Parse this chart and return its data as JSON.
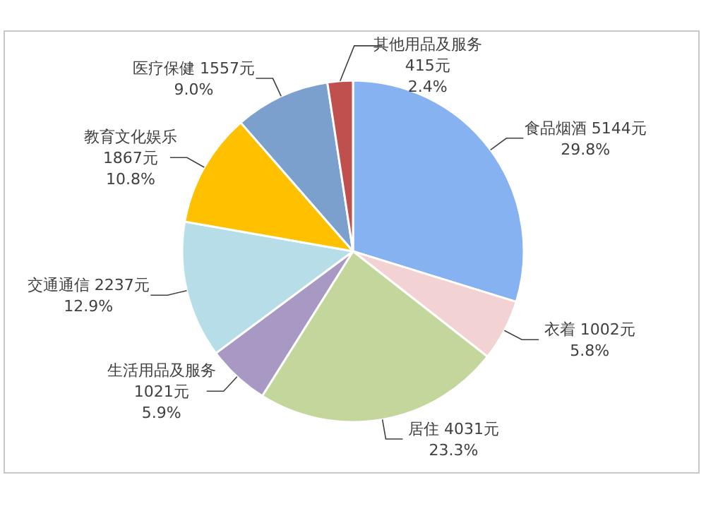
{
  "chart_data": {
    "type": "pie",
    "categories": [
      "食品烟酒",
      "衣着",
      "居住",
      "生活用品及服务",
      "交通通信",
      "教育文化娱乐",
      "医疗保健",
      "其他用品及服务"
    ],
    "values": [
      5144,
      1002,
      4031,
      1021,
      2237,
      1867,
      1557,
      415
    ],
    "value_labels": [
      "5144元\n29.8%",
      "1002元\n5.8%",
      "4031元\n23.3%",
      "1021元\n5.9%",
      "2237元\n12.9%",
      "1867元\n10.8%",
      "1557元\n9.0%",
      "415元\n2.4%"
    ],
    "colors": [
      "#86b2f2",
      "#f2d2d2",
      "#c3d69b",
      "#a898c4",
      "#b7dee8",
      "#ffc000",
      "#7ba0cd",
      "#c0504d"
    ]
  }
}
